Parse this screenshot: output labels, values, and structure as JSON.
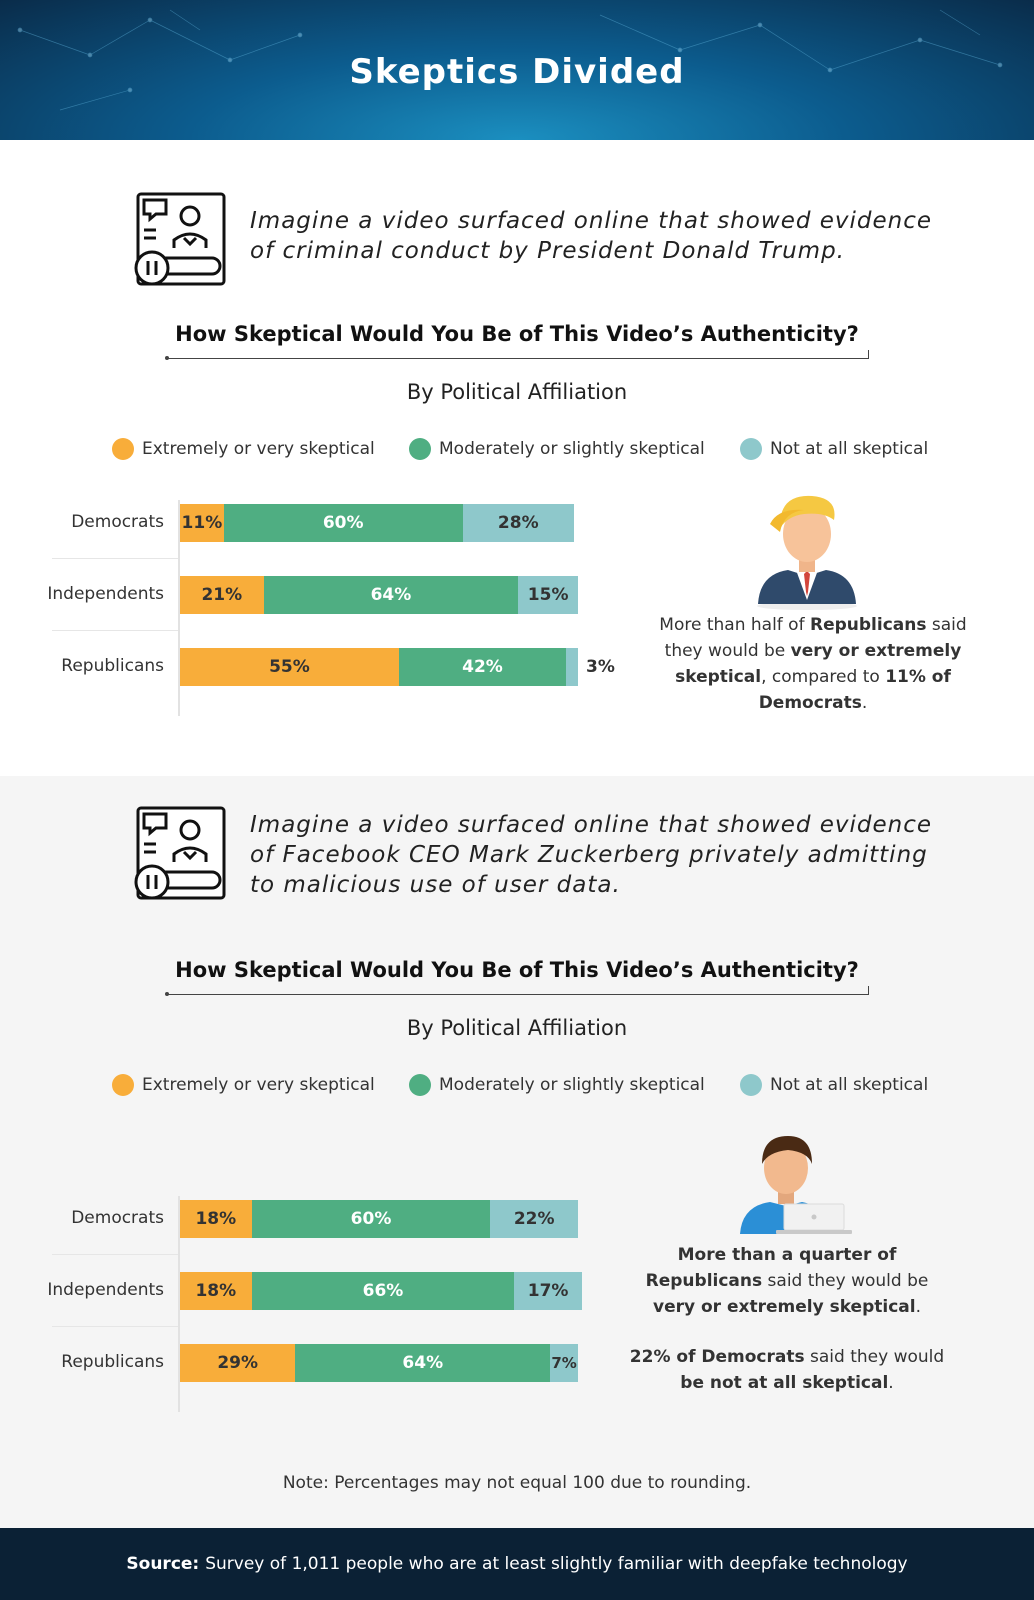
{
  "title": "Skeptics Divided",
  "colors": {
    "extreme": "#f8ad3a",
    "moderate": "#4fae82",
    "not": "#8ec8cb"
  },
  "legend": [
    {
      "label": "Extremely or very skeptical",
      "color": "#f8ad3a"
    },
    {
      "label": "Moderately or slightly skeptical",
      "color": "#4fae82"
    },
    {
      "label": "Not at all skeptical",
      "color": "#8ec8cb"
    }
  ],
  "sections": [
    {
      "scenario_lines": [
        "Imagine a video surfaced online that showed evidence",
        "of criminal conduct by President Donald Trump."
      ],
      "question": "How Skeptical Would You Be of This Video’s Authenticity?",
      "subtitle": "By Political Affiliation",
      "callout": [
        {
          "t": "More than half of ",
          "b": false
        },
        {
          "t": "Republicans",
          "b": true
        },
        {
          "t": " said they would be ",
          "b": false
        },
        {
          "t": "very or extremely skeptical",
          "b": true
        },
        {
          "t": ", compared to ",
          "b": false
        },
        {
          "t": "11% of Democrats",
          "b": true
        },
        {
          "t": ".",
          "b": false
        }
      ]
    },
    {
      "scenario_lines": [
        "Imagine a video surfaced online that showed evidence",
        "of Facebook CEO Mark Zuckerberg privately admitting",
        "to malicious use of user data."
      ],
      "question": "How Skeptical Would You Be of This Video’s Authenticity?",
      "subtitle": "By Political Affiliation",
      "callout": [
        {
          "t": "More than a quarter of Republicans",
          "b": true
        },
        {
          "t": " said they would be ",
          "b": false
        },
        {
          "t": "very or extremely skeptical",
          "b": true
        },
        {
          "t": ".",
          "b": false
        }
      ],
      "callout2": [
        {
          "t": "22% of Democrats",
          "b": true
        },
        {
          "t": " said they would ",
          "b": false
        },
        {
          "t": "be not at all skeptical",
          "b": true
        },
        {
          "t": ".",
          "b": false
        }
      ]
    }
  ],
  "chart_data": [
    {
      "type": "bar",
      "orientation": "horizontal",
      "stacked": true,
      "title": "How Skeptical Would You Be of This Video’s Authenticity?",
      "subtitle": "By Political Affiliation",
      "categories": [
        "Democrats",
        "Independents",
        "Republicans"
      ],
      "series": [
        {
          "name": "Extremely or very skeptical",
          "values": [
            11,
            21,
            55
          ]
        },
        {
          "name": "Moderately or slightly skeptical",
          "values": [
            60,
            64,
            42
          ]
        },
        {
          "name": "Not at all skeptical",
          "values": [
            28,
            15,
            3
          ]
        }
      ],
      "unit": "%",
      "legend": "top"
    },
    {
      "type": "bar",
      "orientation": "horizontal",
      "stacked": true,
      "title": "How Skeptical Would You Be of This Video’s Authenticity?",
      "subtitle": "By Political Affiliation",
      "categories": [
        "Democrats",
        "Independents",
        "Republicans"
      ],
      "series": [
        {
          "name": "Extremely or very skeptical",
          "values": [
            18,
            18,
            29
          ]
        },
        {
          "name": "Moderately or slightly skeptical",
          "values": [
            60,
            66,
            64
          ]
        },
        {
          "name": "Not at all skeptical",
          "values": [
            22,
            17,
            7
          ]
        }
      ],
      "unit": "%",
      "legend": "top"
    }
  ],
  "note": "Note: Percentages may not equal 100 due to rounding.",
  "source_label": "Source:",
  "source_text": "Survey of 1,011 people who are at least slightly familiar with deepfake technology"
}
